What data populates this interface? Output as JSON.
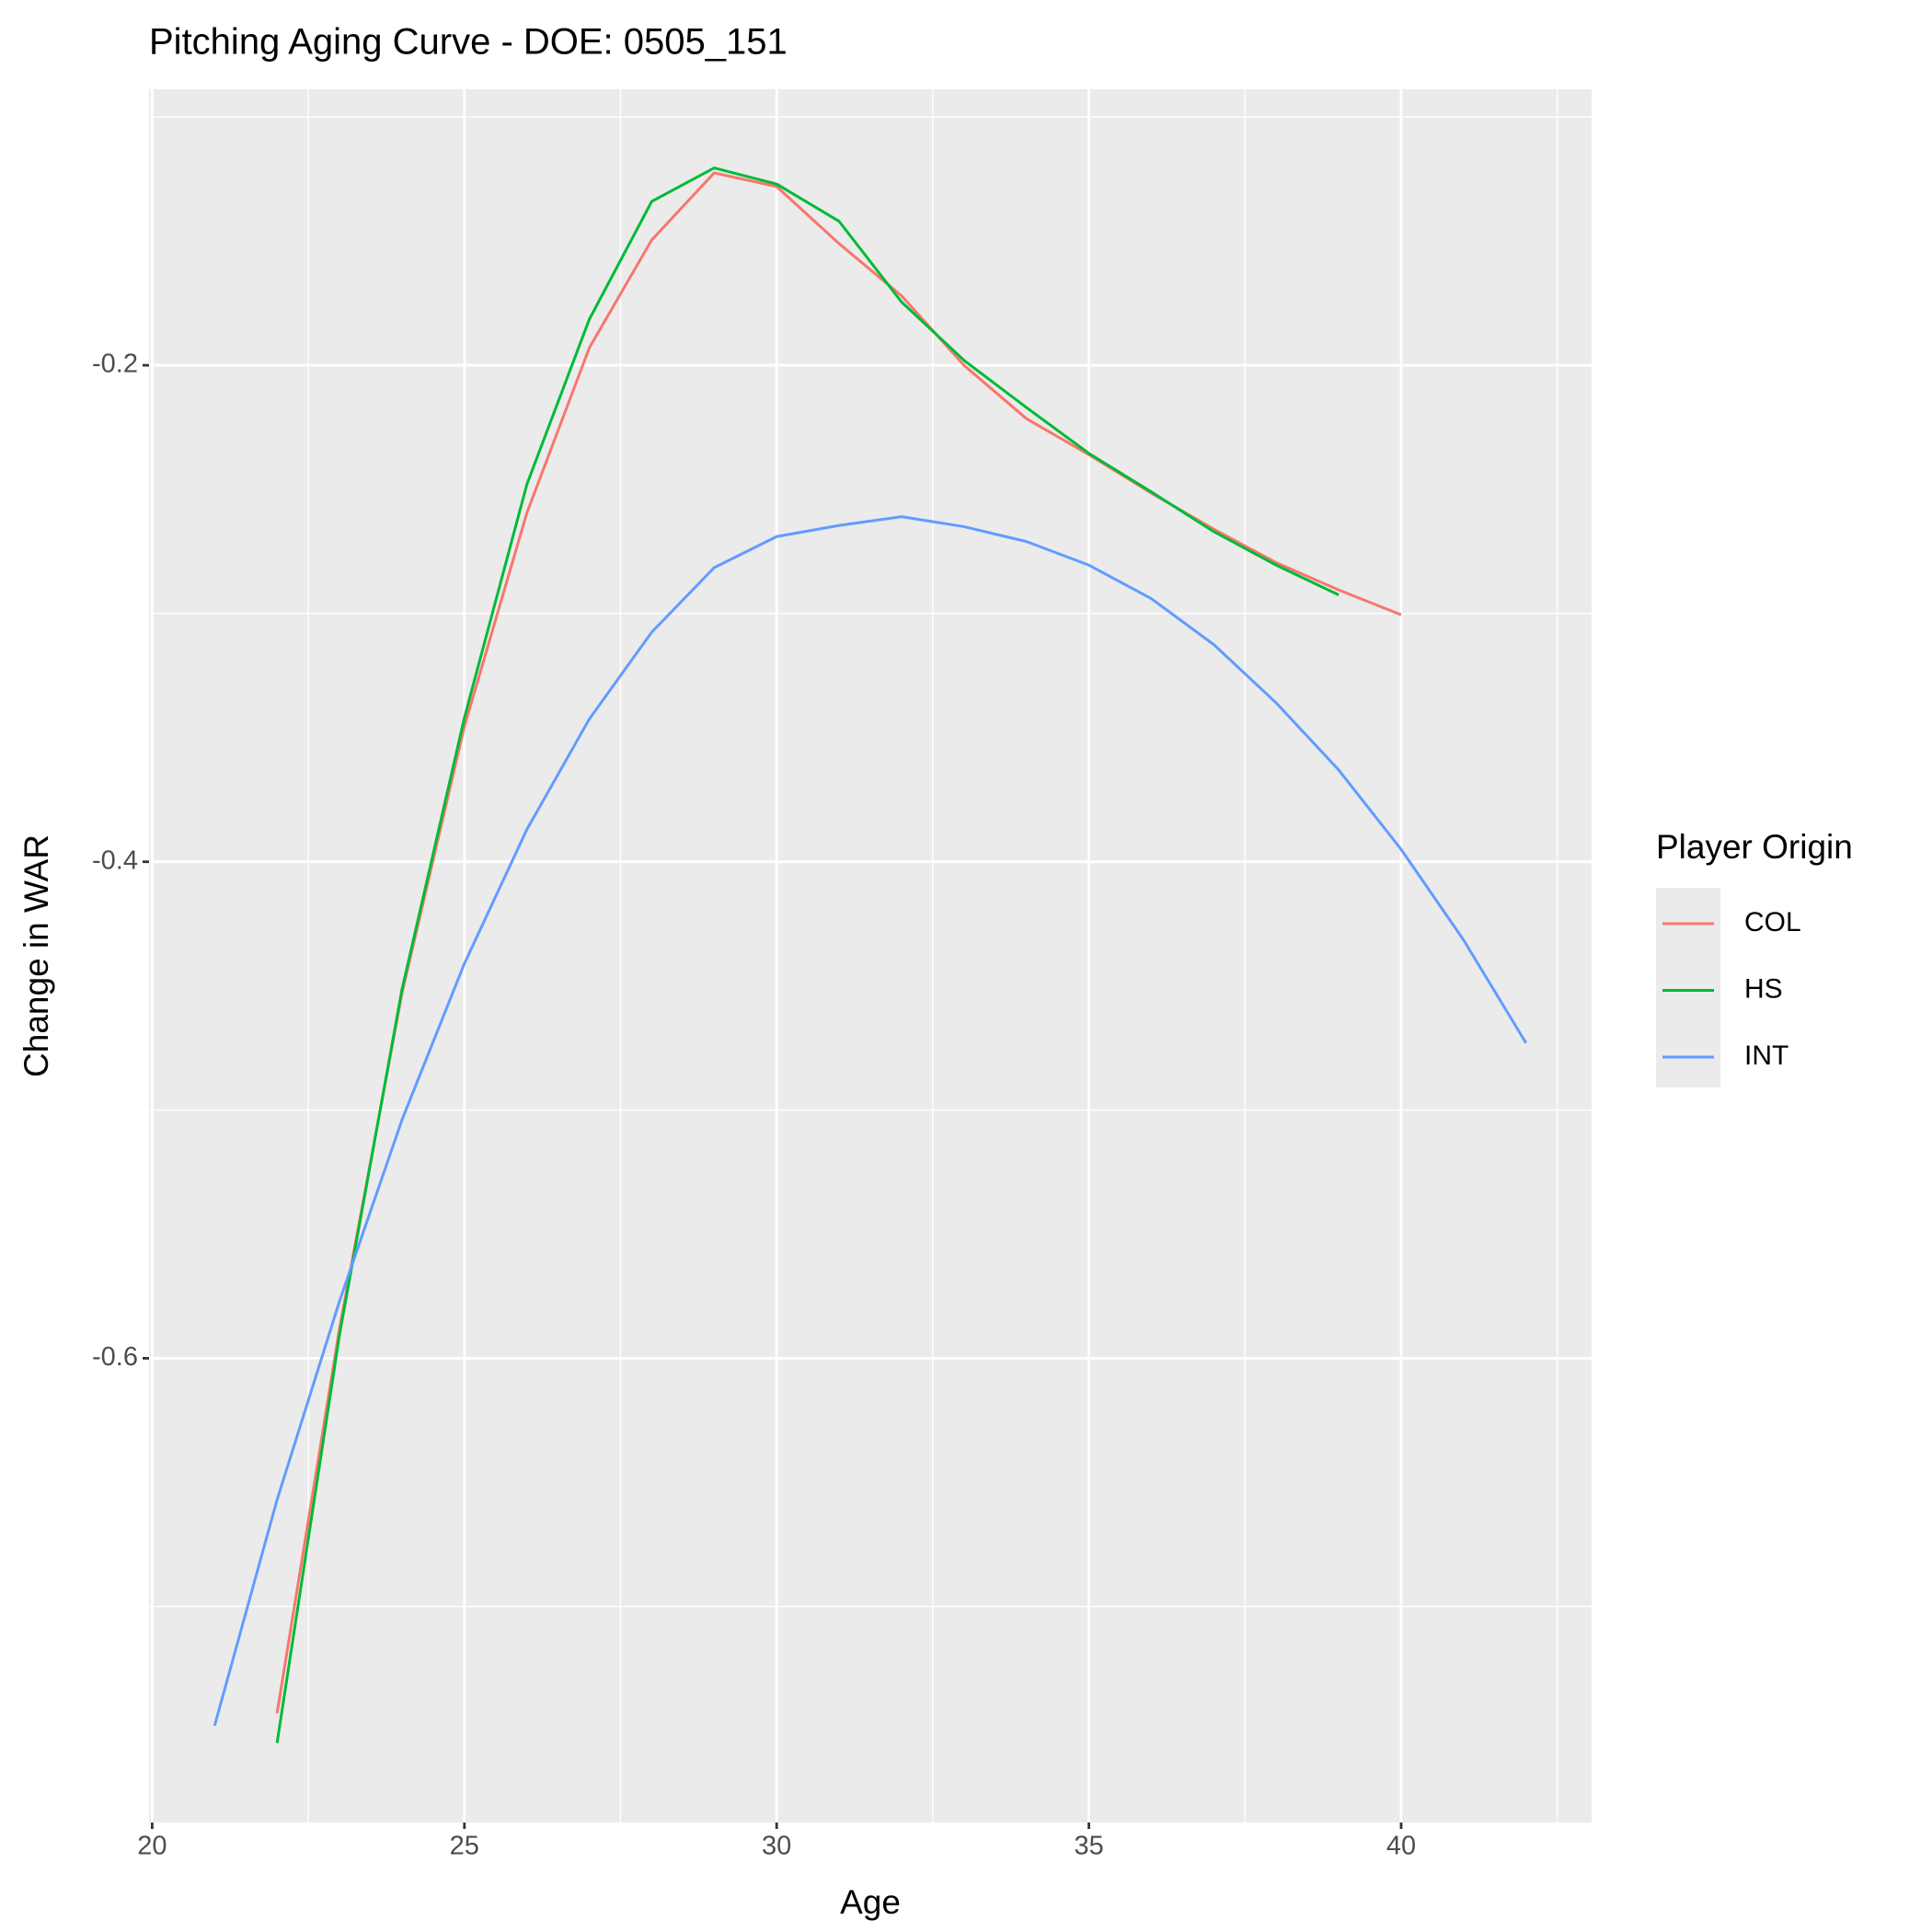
{
  "chart_data": {
    "type": "line",
    "title": "Pitching Aging Curve - DOE: 0505_151",
    "x_label": "Age",
    "y_label": "Change in WAR",
    "x": [
      21,
      22,
      23,
      24,
      25,
      26,
      27,
      28,
      29,
      30,
      31,
      32,
      33,
      34,
      35,
      36,
      37,
      38,
      39,
      40,
      41,
      42
    ],
    "series": [
      {
        "name": "COL",
        "color": "#F8766D",
        "values": [
          null,
          -0.743,
          -0.588,
          -0.453,
          -0.3455,
          -0.2595,
          -0.193,
          -0.1495,
          -0.1225,
          -0.128,
          -0.151,
          -0.172,
          -0.2,
          -0.2215,
          -0.236,
          -0.2515,
          -0.266,
          -0.2795,
          -0.2905,
          -0.3005,
          null,
          null
        ]
      },
      {
        "name": "HS",
        "color": "#00BA38",
        "values": [
          null,
          -0.755,
          -0.5905,
          -0.4515,
          -0.342,
          -0.248,
          -0.1815,
          -0.134,
          -0.1205,
          -0.127,
          -0.142,
          -0.1745,
          -0.198,
          -0.217,
          -0.2355,
          -0.251,
          -0.267,
          -0.2805,
          -0.2925,
          null,
          null,
          null
        ]
      },
      {
        "name": "INT",
        "color": "#619CFF",
        "values": [
          -0.748,
          -0.657,
          -0.577,
          -0.504,
          -0.441,
          -0.387,
          -0.3425,
          -0.3075,
          -0.2815,
          -0.269,
          -0.2645,
          -0.261,
          -0.265,
          -0.271,
          -0.2805,
          -0.294,
          -0.3125,
          -0.336,
          -0.363,
          -0.395,
          -0.4315,
          -0.473
        ]
      }
    ],
    "legend_title": "Player Origin",
    "legend_position": "right",
    "xlim": [
      19.95,
      43.05
    ],
    "xticks": [
      20,
      25,
      30,
      35,
      40
    ],
    "ylim": [
      -0.787,
      -0.0888
    ],
    "yticks": [
      -0.6,
      -0.4,
      -0.2
    ],
    "grid": true
  }
}
